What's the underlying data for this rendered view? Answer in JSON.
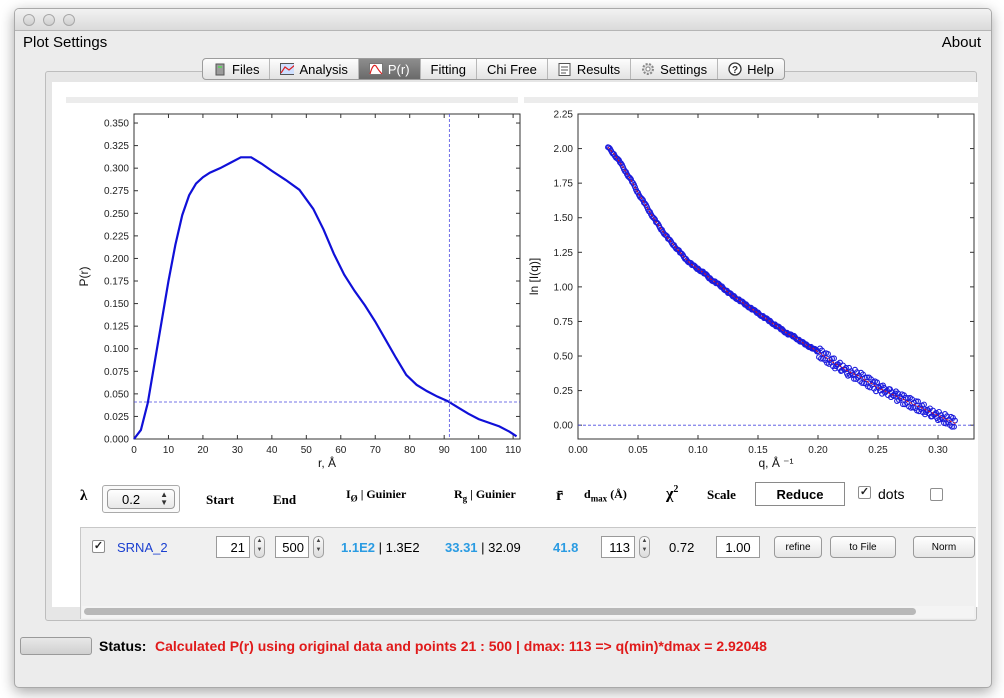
{
  "menubar": {
    "left": "Plot Settings",
    "right": "About"
  },
  "tabs": [
    {
      "label": "Files",
      "icon": "file-icon",
      "active": false
    },
    {
      "label": "Analysis",
      "icon": "chart-icon",
      "active": false
    },
    {
      "label": "P(r)",
      "icon": "pr-icon",
      "active": true
    },
    {
      "label": "Fitting",
      "icon": "",
      "active": false
    },
    {
      "label": "Chi Free",
      "icon": "",
      "active": false
    },
    {
      "label": "Results",
      "icon": "results-icon",
      "active": false
    },
    {
      "label": "Settings",
      "icon": "gear-icon",
      "active": false
    },
    {
      "label": "Help",
      "icon": "help-icon",
      "active": false
    }
  ],
  "chart_data": [
    {
      "type": "line",
      "title": "",
      "xlabel": "r, Å",
      "ylabel": "P(r)",
      "xlim": [
        0,
        112
      ],
      "ylim": [
        0,
        0.36
      ],
      "xticks": [
        "0",
        "10",
        "20",
        "30",
        "40",
        "50",
        "60",
        "70",
        "80",
        "90",
        "100",
        "110"
      ],
      "yticks": [
        "0.000",
        "0.025",
        "0.050",
        "0.075",
        "0.100",
        "0.125",
        "0.150",
        "0.175",
        "0.200",
        "0.225",
        "0.250",
        "0.275",
        "0.300",
        "0.325",
        "0.350"
      ],
      "series": [
        {
          "color": "#1010d8",
          "x": [
            0,
            2,
            4,
            6,
            8,
            10,
            12,
            14,
            16,
            18,
            20,
            22,
            25,
            28,
            31,
            34,
            37,
            40,
            44,
            48,
            52,
            55,
            58,
            61,
            64,
            67,
            70,
            73,
            76,
            79,
            82,
            85,
            88,
            91,
            94,
            97,
            100,
            103,
            106,
            109,
            111
          ],
          "y": [
            0,
            0.01,
            0.04,
            0.085,
            0.13,
            0.175,
            0.215,
            0.248,
            0.27,
            0.283,
            0.29,
            0.295,
            0.3,
            0.306,
            0.312,
            0.312,
            0.305,
            0.297,
            0.287,
            0.276,
            0.255,
            0.232,
            0.205,
            0.182,
            0.164,
            0.148,
            0.13,
            0.11,
            0.09,
            0.071,
            0.06,
            0.053,
            0.047,
            0.042,
            0.035,
            0.028,
            0.022,
            0.018,
            0.014,
            0.008,
            0.003
          ]
        }
      ],
      "crosshair": {
        "x": 91.5,
        "y": 0.041
      }
    },
    {
      "type": "scatter",
      "title": "",
      "xlabel": "q, Å ⁻¹",
      "ylabel": "ln [I(q)]",
      "xlim": [
        0,
        0.33
      ],
      "ylim": [
        -0.1,
        2.25
      ],
      "xticks": [
        "0.00",
        "0.05",
        "0.10",
        "0.15",
        "0.20",
        "0.25",
        "0.30"
      ],
      "yticks": [
        "0.00",
        "0.25",
        "0.50",
        "0.75",
        "1.00",
        "1.25",
        "1.50",
        "1.75",
        "2.00",
        "2.25"
      ],
      "series": [
        {
          "name": "",
          "color": "#1a1adc",
          "x": [
            0.025,
            0.03,
            0.035,
            0.04,
            0.045,
            0.05,
            0.055,
            0.06,
            0.065,
            0.07,
            0.075,
            0.08,
            0.085,
            0.09,
            0.095,
            0.1,
            0.105,
            0.11,
            0.115,
            0.12,
            0.125,
            0.13,
            0.135,
            0.14,
            0.145,
            0.15,
            0.155,
            0.16,
            0.165,
            0.17,
            0.175,
            0.18,
            0.185,
            0.19,
            0.195,
            0.2,
            0.205,
            0.21,
            0.215,
            0.22,
            0.225,
            0.23,
            0.235,
            0.24,
            0.245,
            0.25,
            0.255,
            0.26,
            0.265,
            0.27,
            0.275,
            0.28,
            0.285,
            0.29,
            0.295,
            0.3,
            0.305,
            0.31,
            0.315
          ],
          "y": [
            2.01,
            1.96,
            1.9,
            1.83,
            1.76,
            1.68,
            1.61,
            1.54,
            1.47,
            1.41,
            1.35,
            1.3,
            1.25,
            1.2,
            1.16,
            1.13,
            1.1,
            1.06,
            1.03,
            1.0,
            0.96,
            0.93,
            0.9,
            0.87,
            0.84,
            0.81,
            0.78,
            0.75,
            0.72,
            0.69,
            0.66,
            0.64,
            0.61,
            0.58,
            0.56,
            0.53,
            0.5,
            0.47,
            0.44,
            0.42,
            0.39,
            0.37,
            0.35,
            0.32,
            0.3,
            0.27,
            0.25,
            0.23,
            0.21,
            0.19,
            0.17,
            0.15,
            0.13,
            0.11,
            0.09,
            0.07,
            0.05,
            0.03,
            0.01
          ]
        }
      ],
      "fit_color": "#e01010",
      "baseline_y": 0.0
    }
  ],
  "controls": {
    "lambda_label": "λ",
    "lambda_value": "0.2",
    "start_label": "Start",
    "end_label": "End",
    "io_label": "I",
    "io_sub": "Ø",
    "io_suffix": " | Guinier",
    "rg_label": "R",
    "rg_sub": "g",
    "rg_suffix": " | Guinier",
    "rbar_label": "r̄",
    "dmax_label": "d",
    "dmax_sub": "max",
    "dmax_suffix": " (Å)",
    "chi_label": "χ",
    "chi_sup": "2",
    "scale_label": "Scale",
    "reduce_button": "Reduce",
    "dots_label": "dots",
    "dots_checked": "✓"
  },
  "row": {
    "checked": "✓",
    "name": "SRNA_2",
    "start": "21",
    "end": "500",
    "io": "1.1E2",
    "io_guinier": " | 1.3E2",
    "rg": "33.31",
    "rg_guinier": " | 32.09",
    "rbar": "41.8",
    "dmax": "113",
    "chi2": "0.72",
    "scale": "1.00",
    "refine_button": "refine",
    "tofile_button": "to File",
    "norm_button": "Norm"
  },
  "status": {
    "label": "Status:",
    "message": "Calculated P(r) using original data and points 21 : 500  |  dmax: 113 => q(min)*dmax = 2.92048"
  }
}
